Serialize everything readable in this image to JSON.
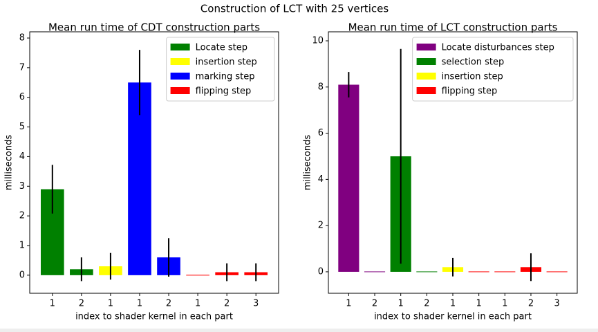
{
  "title": "Construction of LCT with 25 vertices",
  "chart_data": [
    {
      "type": "bar",
      "title": "Mean run time of CDT construction parts",
      "xlabel": "index to shader kernel in each part",
      "ylabel": "milliseconds",
      "categories": [
        "1",
        "2",
        "1",
        "1",
        "2",
        "1",
        "2",
        "3"
      ],
      "series": [
        {
          "name": "Locate step",
          "color": "#008000",
          "values": [
            2.9,
            0.2,
            null,
            null,
            null,
            null,
            null,
            null
          ],
          "errors": [
            0.82,
            0.4,
            null,
            null,
            null,
            null,
            null,
            null
          ]
        },
        {
          "name": "insertion step",
          "color": "#ffff00",
          "values": [
            null,
            null,
            0.3,
            null,
            null,
            null,
            null,
            null
          ],
          "errors": [
            null,
            null,
            0.45,
            null,
            null,
            null,
            null,
            null
          ]
        },
        {
          "name": "marking step",
          "color": "#0000ff",
          "values": [
            null,
            null,
            null,
            6.5,
            0.6,
            null,
            null,
            null
          ],
          "errors": [
            null,
            null,
            null,
            1.1,
            0.65,
            null,
            null,
            null
          ]
        },
        {
          "name": "flipping step",
          "color": "#ff0000",
          "values": [
            null,
            null,
            null,
            null,
            null,
            0.0,
            0.1,
            0.1
          ],
          "errors": [
            null,
            null,
            null,
            null,
            null,
            0.0,
            0.3,
            0.3
          ]
        }
      ],
      "ylim": [
        -0.61,
        8.21
      ],
      "yticks": [
        0,
        1,
        2,
        3,
        4,
        5,
        6,
        7,
        8
      ],
      "legend": "upper right"
    },
    {
      "type": "bar",
      "title": "Mean run time of LCT construction parts",
      "xlabel": "index to shader kernel in each part",
      "ylabel": "milliseconds",
      "categories": [
        "1",
        "2",
        "1",
        "2",
        "1",
        "1",
        "1",
        "2",
        "3"
      ],
      "series": [
        {
          "name": "Locate disturbances step",
          "color": "#800080",
          "values": [
            8.1,
            0.0,
            null,
            null,
            null,
            null,
            null,
            null,
            null
          ],
          "errors": [
            0.55,
            0.0,
            null,
            null,
            null,
            null,
            null,
            null,
            null
          ]
        },
        {
          "name": "selection step",
          "color": "#008000",
          "values": [
            null,
            null,
            5.0,
            0.0,
            null,
            null,
            null,
            null,
            null
          ],
          "errors": [
            null,
            null,
            4.65,
            0.0,
            null,
            null,
            null,
            null,
            null
          ]
        },
        {
          "name": "insertion step",
          "color": "#ffff00",
          "values": [
            null,
            null,
            null,
            null,
            0.2,
            null,
            null,
            null,
            null
          ],
          "errors": [
            null,
            null,
            null,
            null,
            0.4,
            null,
            null,
            null,
            null
          ]
        },
        {
          "name": "flipping step",
          "color": "#ff0000",
          "values": [
            null,
            null,
            null,
            null,
            null,
            0.0,
            0.0,
            0.2,
            0.0
          ],
          "errors": [
            null,
            null,
            null,
            null,
            null,
            0.0,
            0.0,
            0.6,
            0.0
          ]
        }
      ],
      "ylim": [
        -0.93,
        10.39
      ],
      "yticks": [
        0,
        2,
        4,
        6,
        8,
        10
      ],
      "legend": "upper right"
    }
  ]
}
